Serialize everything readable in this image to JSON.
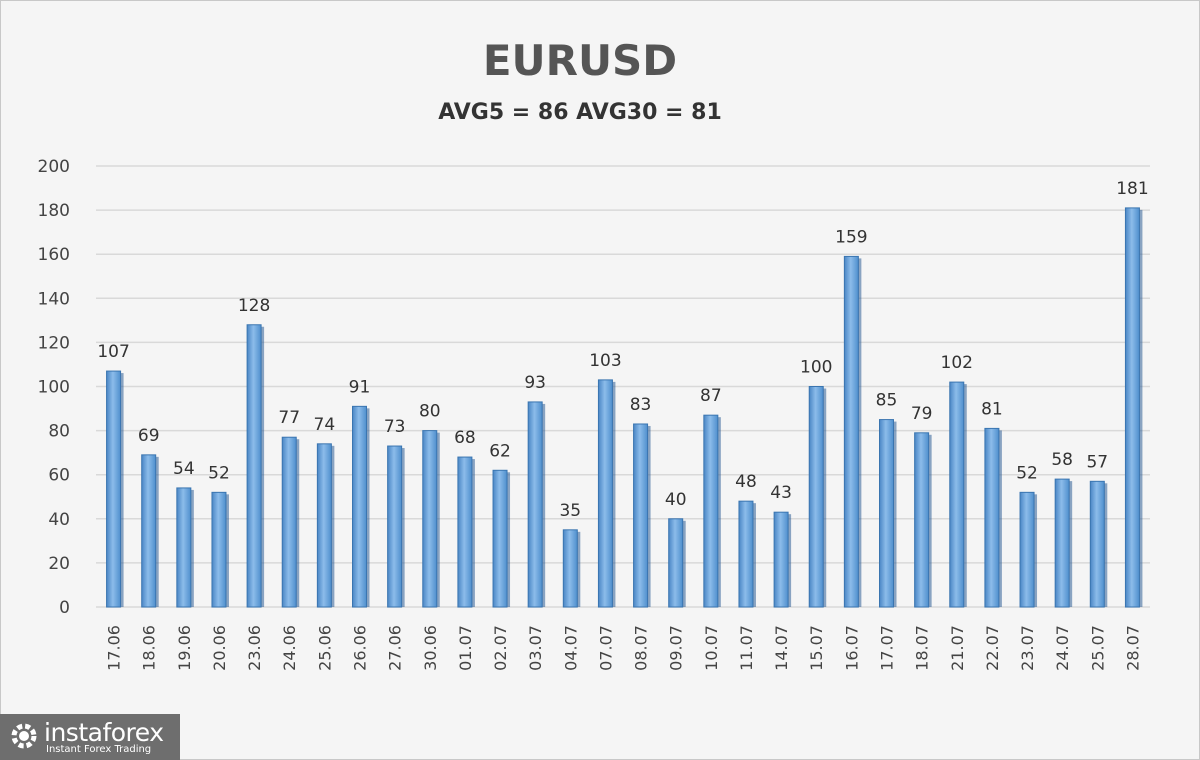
{
  "chart_data": {
    "type": "bar",
    "title": "EURUSD",
    "subtitle": "AVG5 = 86 AVG30 = 81",
    "categories": [
      "17.06",
      "18.06",
      "19.06",
      "20.06",
      "23.06",
      "24.06",
      "25.06",
      "26.06",
      "27.06",
      "30.06",
      "01.07",
      "02.07",
      "03.07",
      "04.07",
      "07.07",
      "08.07",
      "09.07",
      "10.07",
      "11.07",
      "14.07",
      "15.07",
      "16.07",
      "17.07",
      "18.07",
      "21.07",
      "22.07",
      "23.07",
      "24.07",
      "25.07",
      "28.07"
    ],
    "values": [
      107,
      69,
      54,
      52,
      128,
      77,
      74,
      91,
      73,
      80,
      68,
      62,
      93,
      35,
      103,
      83,
      40,
      87,
      48,
      43,
      100,
      159,
      85,
      79,
      102,
      81,
      52,
      58,
      57,
      181
    ],
    "ylim": [
      0,
      200
    ],
    "yticks": [
      0,
      20,
      40,
      60,
      80,
      100,
      120,
      140,
      160,
      180,
      200
    ],
    "grid": true,
    "bar_color": "#5b9bd5"
  },
  "logo": {
    "name": "instaforex",
    "tagline": "Instant Forex Trading"
  }
}
